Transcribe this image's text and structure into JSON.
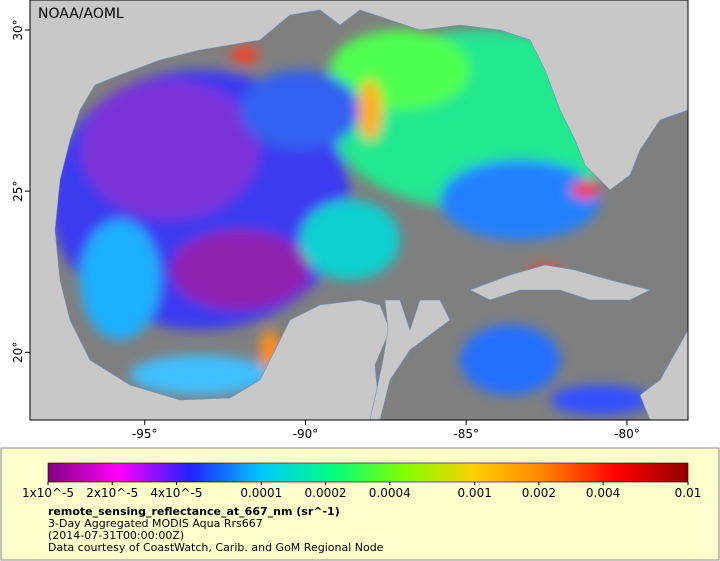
{
  "map": {
    "attribution": "NOAA/AOML",
    "xlim": [
      -98.57,
      -78.1
    ],
    "ylim": [
      17.9,
      30.93
    ],
    "xticks": [
      {
        "value": -95,
        "label": "-95°"
      },
      {
        "value": -90,
        "label": "-90°"
      },
      {
        "value": -85,
        "label": "-85°"
      },
      {
        "value": -80,
        "label": "-80°"
      }
    ],
    "yticks": [
      {
        "value": 30,
        "label": "30°"
      },
      {
        "value": 25,
        "label": "25°"
      },
      {
        "value": 20,
        "label": "20°"
      }
    ]
  },
  "colorbar": {
    "log_scale": true,
    "range": [
      1e-05,
      0.01
    ],
    "colors": [
      "#800080",
      "#ff00ff",
      "#2020ff",
      "#00c8ff",
      "#00ff80",
      "#80ff00",
      "#ffd000",
      "#ff8000",
      "#ff0000",
      "#900000"
    ],
    "ticks": [
      {
        "value": 1e-05,
        "label": "1x10^-5"
      },
      {
        "value": 2e-05,
        "label": "2x10^-5"
      },
      {
        "value": 4e-05,
        "label": "4x10^-5"
      },
      0.0001,
      0.0002,
      0.0004,
      0.001,
      0.002,
      0.004,
      0.01
    ]
  },
  "caption": {
    "variable": "remote_sensing_reflectance_at_667_nm (sr^-1)",
    "product": "3-Day Aggregated MODIS Aqua Rrs667",
    "time": "(2014-07-31T00:00:00Z)",
    "credit": "Data courtesy of CoastWatch, Carib. and GoM Regional Node"
  }
}
